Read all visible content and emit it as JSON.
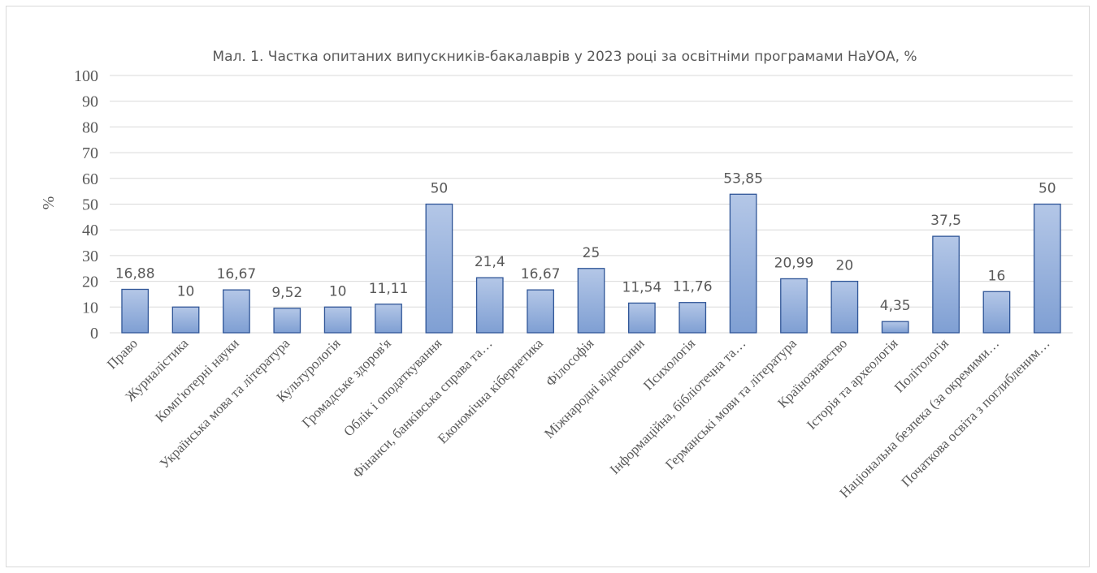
{
  "chart_data": {
    "type": "bar",
    "title": "Мал. 1. Частка опитаних випускників-бакалаврів у 2023 році за освітніми програмами НаУОА, %",
    "xlabel": "",
    "ylabel": "%",
    "ylim": [
      0,
      100
    ],
    "yticks": [
      0,
      10,
      20,
      30,
      40,
      50,
      60,
      70,
      80,
      90,
      100
    ],
    "grid": true,
    "legend": "none",
    "categories": [
      "Право",
      "Журналістика",
      "Комп'ютерні науки",
      "Українська мова та література",
      "Культурологія",
      "Громадське здоров'я",
      "Облік і оподаткування",
      "Фінанси, банківська справа та…",
      "Економічна кібернетика",
      "Філософія",
      "Міжнародні відносини",
      "Психологія",
      "Інформаційна, бібліотечна та…",
      "Германські мови та література",
      "Країнознавство",
      "Історія та археологія",
      "Політологія",
      "Національна безпека (за окремими…",
      "Початкова освіта з поглибленим…"
    ],
    "values": [
      16.88,
      10,
      16.67,
      9.52,
      10,
      11.11,
      50,
      21.4,
      16.67,
      25,
      11.54,
      11.76,
      53.85,
      20.99,
      20,
      4.35,
      37.5,
      16,
      50
    ],
    "value_labels": [
      "16,88",
      "10",
      "16,67",
      "9,52",
      "10",
      "11,11",
      "50",
      "21,4",
      "16,67",
      "25",
      "11,54",
      "11,76",
      "53,85",
      "20,99",
      "20",
      "4,35",
      "37,5",
      "16",
      "50"
    ],
    "bar_color_top": "#b4c7e7",
    "bar_color_bottom": "#7f9fd3",
    "bar_border_color": "#2f5597",
    "grid_color": "#d9d9d9",
    "text_color": "#595959"
  }
}
